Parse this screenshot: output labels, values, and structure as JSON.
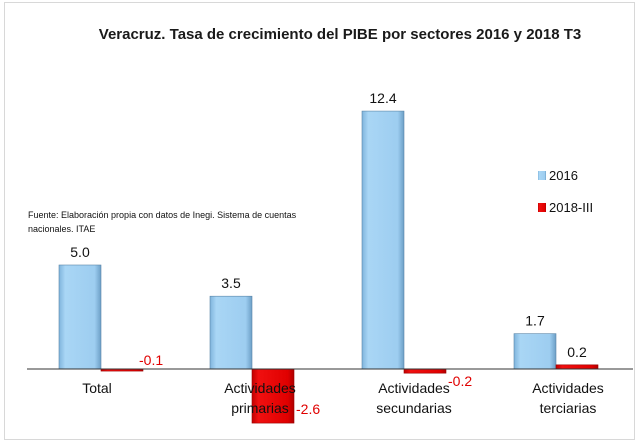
{
  "chart_data": {
    "type": "bar",
    "title": "Veracruz. Tasa de crecimiento del PIBE por sectores 2016  y 2018 T3",
    "categories": [
      [
        "Total"
      ],
      [
        "Actividades",
        "primarias"
      ],
      [
        "Actividades",
        "secundarias"
      ],
      [
        "Actividades",
        "terciarias"
      ]
    ],
    "series": [
      {
        "name": "2016",
        "values": [
          5.0,
          3.5,
          12.4,
          1.7
        ],
        "labels": [
          "5.0",
          "3.5",
          "12.4",
          "1.7"
        ],
        "color": "#9dcdf0"
      },
      {
        "name": "2018-III",
        "values": [
          -0.1,
          -2.6,
          -0.2,
          0.2
        ],
        "labels": [
          "-0.1",
          "-2.6",
          "-0.2",
          "0.2"
        ],
        "color": "#e00000"
      }
    ],
    "legend": "right",
    "grid": false,
    "source_note": "Fuente: Elaboración propia con datos de Inegi. Sistema de cuentas nacionales. ITAE"
  }
}
